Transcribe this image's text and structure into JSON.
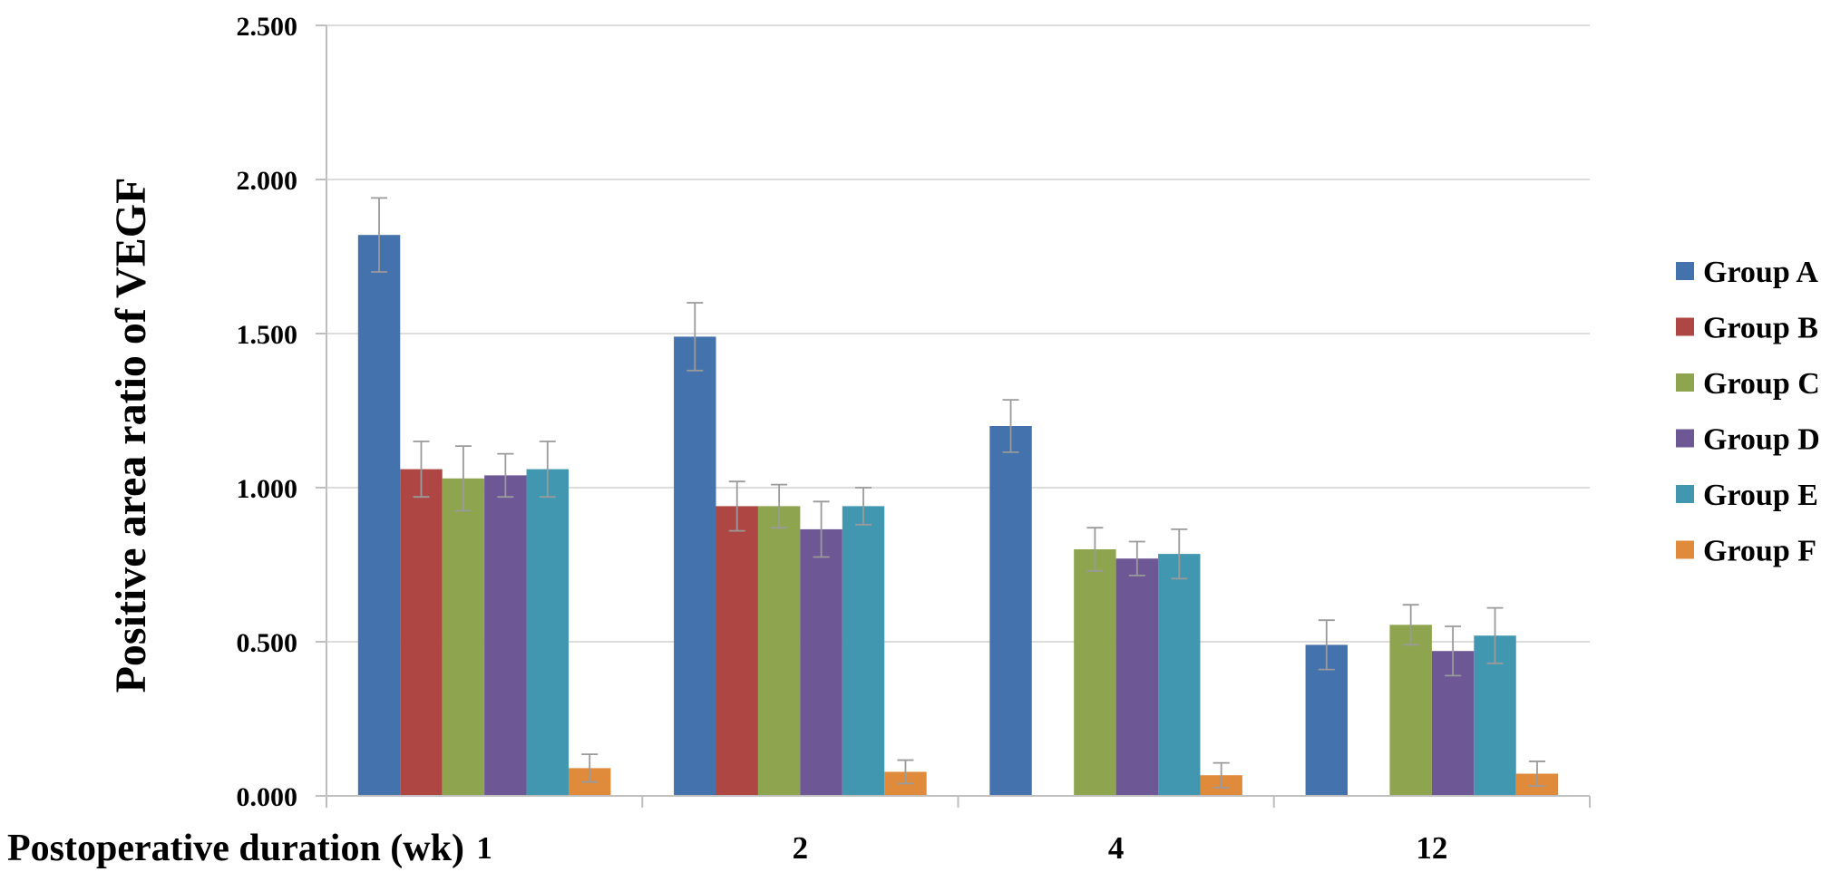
{
  "figure": {
    "background": "#ffffff"
  },
  "styles": {
    "grid_color": "#DCDCDC",
    "axis_color": "#BFBFBF",
    "tick_color": "#BFBFBF",
    "error_bar_color": "#9A9A9A",
    "text_color": "#000000"
  },
  "chart_data": {
    "type": "bar",
    "title": "",
    "xlabel": "Postoperative duration (wk)",
    "ylabel": "Positive area ratio of VEGF",
    "categories": [
      "1",
      "2",
      "4",
      "12"
    ],
    "series": [
      {
        "name": "Group A",
        "color": "#4472AC",
        "values": [
          1.82,
          1.49,
          1.2,
          0.49
        ],
        "errors": [
          0.12,
          0.11,
          0.085,
          0.08
        ]
      },
      {
        "name": "Group B",
        "color": "#AE4743",
        "values": [
          1.06,
          0.94,
          null,
          null
        ],
        "errors": [
          0.09,
          0.08,
          null,
          null
        ]
      },
      {
        "name": "Group C",
        "color": "#8EA44E",
        "values": [
          1.03,
          0.94,
          0.8,
          0.555
        ],
        "errors": [
          0.105,
          0.07,
          0.07,
          0.065
        ]
      },
      {
        "name": "Group D",
        "color": "#6D5795",
        "values": [
          1.04,
          0.865,
          0.77,
          0.47
        ],
        "errors": [
          0.07,
          0.09,
          0.055,
          0.08
        ]
      },
      {
        "name": "Group E",
        "color": "#4197B0",
        "values": [
          1.06,
          0.94,
          0.785,
          0.52
        ],
        "errors": [
          0.09,
          0.06,
          0.08,
          0.09
        ]
      },
      {
        "name": "Group F",
        "color": "#E08A3C",
        "values": [
          0.09,
          0.078,
          0.067,
          0.072
        ],
        "errors": [
          0.045,
          0.038,
          0.04,
          0.04
        ]
      }
    ],
    "ylim": [
      0,
      2.5
    ],
    "ytick_step": 0.5,
    "ytick_labels": [
      "0.000",
      "0.500",
      "1.000",
      "1.500",
      "2.000",
      "2.500"
    ],
    "grid": true,
    "legend_position": "right",
    "error_bars": true
  }
}
